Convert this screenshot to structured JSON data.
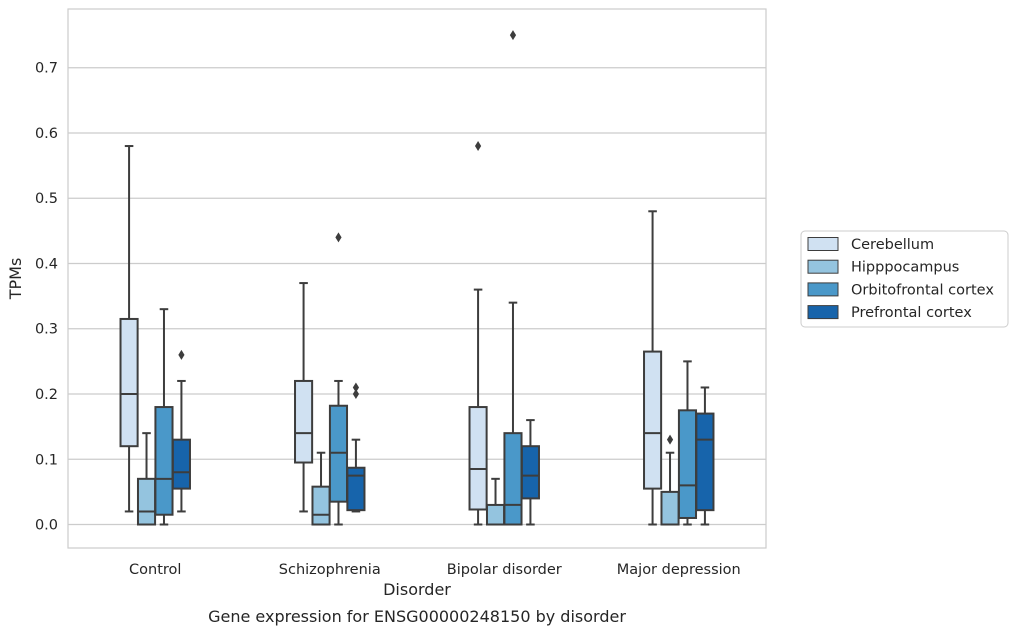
{
  "chart_data": {
    "type": "box",
    "title": "Gene expression for ENSG00000248150 by disorder",
    "xlabel": "Disorder",
    "ylabel": "TPMs",
    "ylim": [
      -0.036,
      0.79
    ],
    "yticks": [
      0.0,
      0.1,
      0.2,
      0.3,
      0.4,
      0.5,
      0.6,
      0.7
    ],
    "ytick_labels": [
      "0.0",
      "0.1",
      "0.2",
      "0.3",
      "0.4",
      "0.5",
      "0.6",
      "0.7"
    ],
    "grid": "horizontal",
    "legend_position": "right",
    "categories": [
      "Control",
      "Schizophrenia",
      "Bipolar disorder",
      "Major depression"
    ],
    "series": [
      {
        "name": "Cerebellum",
        "color": "#d0e1f2",
        "boxes": [
          {
            "whislo": 0.02,
            "q1": 0.12,
            "med": 0.2,
            "q3": 0.315,
            "whishi": 0.58,
            "fliers": []
          },
          {
            "whislo": 0.02,
            "q1": 0.095,
            "med": 0.14,
            "q3": 0.22,
            "whishi": 0.37,
            "fliers": []
          },
          {
            "whislo": 0.0,
            "q1": 0.023,
            "med": 0.085,
            "q3": 0.18,
            "whishi": 0.36,
            "fliers": [
              0.58
            ]
          },
          {
            "whislo": 0.0,
            "q1": 0.055,
            "med": 0.14,
            "q3": 0.265,
            "whishi": 0.48,
            "fliers": []
          }
        ]
      },
      {
        "name": "Hipppocampus",
        "color": "#94c4df",
        "boxes": [
          {
            "whislo": 0.0,
            "q1": 0.0,
            "med": 0.02,
            "q3": 0.07,
            "whishi": 0.14,
            "fliers": []
          },
          {
            "whislo": 0.0,
            "q1": 0.0,
            "med": 0.015,
            "q3": 0.058,
            "whishi": 0.11,
            "fliers": []
          },
          {
            "whislo": 0.0,
            "q1": 0.0,
            "med": 0.0,
            "q3": 0.03,
            "whishi": 0.07,
            "fliers": []
          },
          {
            "whislo": 0.0,
            "q1": 0.0,
            "med": 0.0,
            "q3": 0.05,
            "whishi": 0.11,
            "fliers": [
              0.13
            ]
          }
        ]
      },
      {
        "name": "Orbitofrontal cortex",
        "color": "#4a98c9",
        "boxes": [
          {
            "whislo": 0.0,
            "q1": 0.015,
            "med": 0.07,
            "q3": 0.18,
            "whishi": 0.33,
            "fliers": []
          },
          {
            "whislo": 0.0,
            "q1": 0.035,
            "med": 0.11,
            "q3": 0.182,
            "whishi": 0.22,
            "fliers": [
              0.44
            ]
          },
          {
            "whislo": 0.0,
            "q1": 0.0,
            "med": 0.03,
            "q3": 0.14,
            "whishi": 0.34,
            "fliers": [
              0.75
            ]
          },
          {
            "whislo": 0.0,
            "q1": 0.01,
            "med": 0.06,
            "q3": 0.175,
            "whishi": 0.25,
            "fliers": []
          }
        ]
      },
      {
        "name": "Prefrontal cortex",
        "color": "#1764ab",
        "boxes": [
          {
            "whislo": 0.02,
            "q1": 0.055,
            "med": 0.08,
            "q3": 0.13,
            "whishi": 0.22,
            "fliers": [
              0.26
            ]
          },
          {
            "whislo": 0.02,
            "q1": 0.022,
            "med": 0.075,
            "q3": 0.087,
            "whishi": 0.13,
            "fliers": [
              0.2,
              0.21
            ]
          },
          {
            "whislo": 0.0,
            "q1": 0.04,
            "med": 0.075,
            "q3": 0.12,
            "whishi": 0.16,
            "fliers": []
          },
          {
            "whislo": 0.0,
            "q1": 0.022,
            "med": 0.13,
            "q3": 0.17,
            "whishi": 0.21,
            "fliers": []
          }
        ]
      }
    ]
  }
}
